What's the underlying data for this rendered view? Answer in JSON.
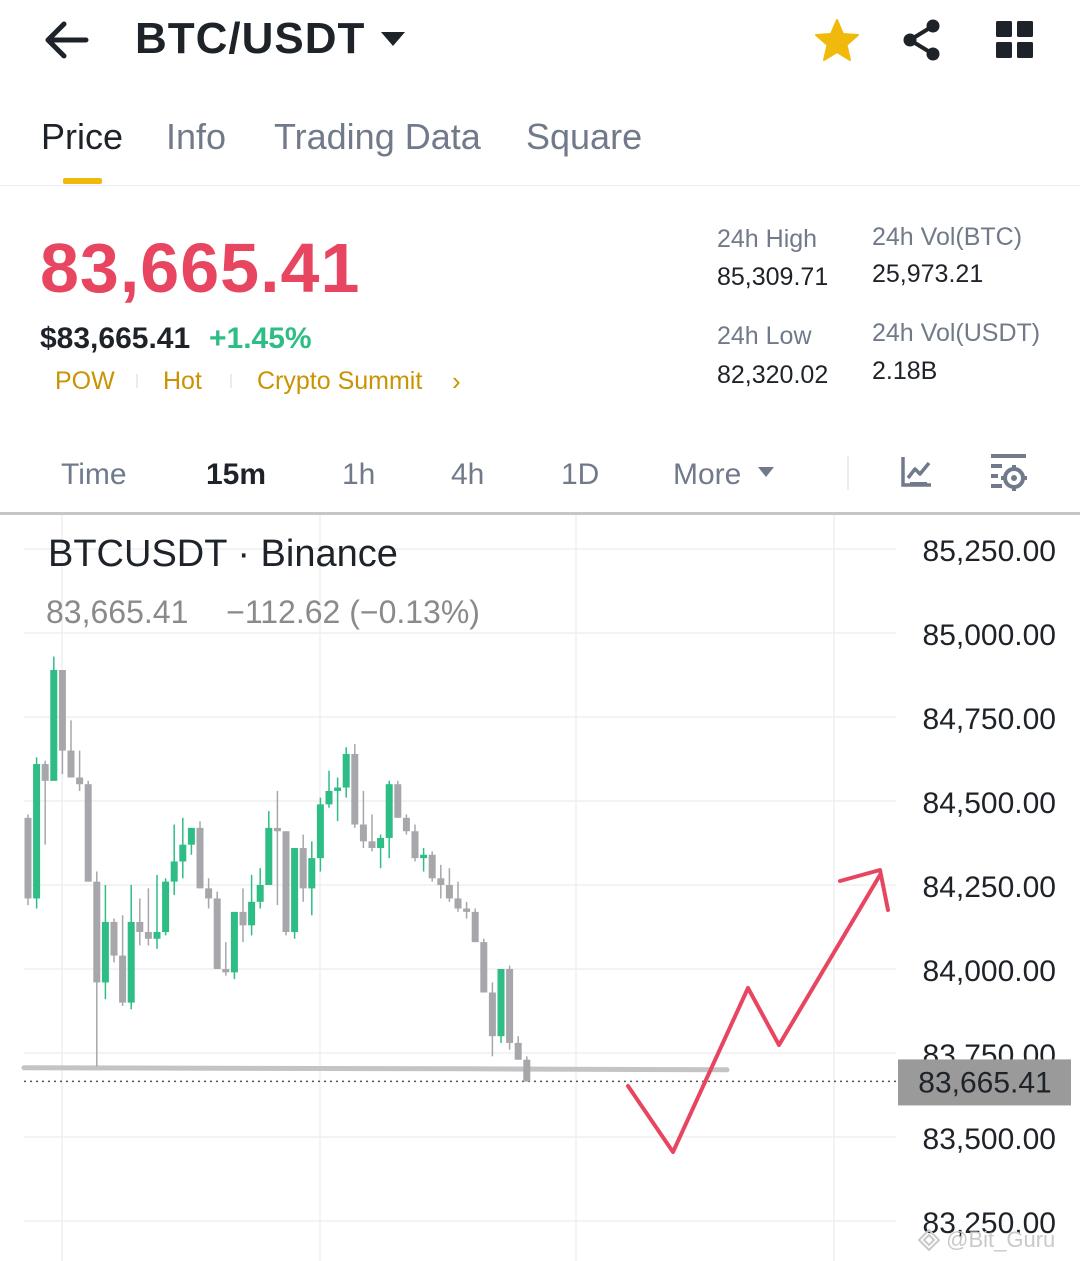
{
  "header": {
    "pair": "BTC/USDT",
    "back_icon": "arrow-left-icon",
    "favorite_icon": "star-icon",
    "share_icon": "share-icon",
    "menu_icon": "grid-icon"
  },
  "tabs": [
    {
      "label": "Price",
      "active": true
    },
    {
      "label": "Info"
    },
    {
      "label": "Trading Data"
    },
    {
      "label": "Square"
    }
  ],
  "ticker": {
    "last_price": "83,665.41",
    "usd_price": "$83,665.41",
    "change_pct": "+1.45%",
    "tags": [
      "POW",
      "Hot",
      "Crypto Summit"
    ],
    "stats": {
      "high_label": "24h High",
      "high_value": "85,309.71",
      "low_label": "24h Low",
      "low_value": "82,320.02",
      "vol_btc_label": "24h Vol(BTC)",
      "vol_btc_value": "25,973.21",
      "vol_usdt_label": "24h Vol(USDT)",
      "vol_usdt_value": "2.18B"
    }
  },
  "intervals": {
    "items": [
      "Time",
      "15m",
      "1h",
      "4h",
      "1D",
      "More"
    ],
    "active": "15m"
  },
  "colors": {
    "down": "#e84660",
    "up": "#2ebd85",
    "accent": "#f0b90b",
    "candle_up": "#2ebd85",
    "candle_down": "#a7a7ab",
    "annotation": "#e84660"
  },
  "chart_data": {
    "type": "candlestick",
    "title": "BTCUSDT · Binance",
    "header_price": "83,665.41",
    "header_change": "−112.62 (−0.13%)",
    "current_price_label": "83,665.41",
    "current_price": 83665.41,
    "y_ticks": [
      "85,250.00",
      "85,000.00",
      "84,750.00",
      "84,500.00",
      "84,250.00",
      "84,000.00",
      "83,750.00",
      "83,500.00",
      "83,250.00"
    ],
    "ylim": [
      83200,
      85300
    ],
    "support_level": 83700,
    "candles": [
      [
        84450,
        84460,
        84190,
        84210
      ],
      [
        84210,
        84630,
        84180,
        84610
      ],
      [
        84610,
        84620,
        84370,
        84560
      ],
      [
        84560,
        84930,
        84560,
        84890
      ],
      [
        84890,
        84890,
        84580,
        84650
      ],
      [
        84650,
        84740,
        84570,
        84570
      ],
      [
        84570,
        84650,
        84530,
        84550
      ],
      [
        84550,
        84560,
        84260,
        84260
      ],
      [
        84260,
        84290,
        83710,
        83960
      ],
      [
        83960,
        84250,
        83910,
        84140
      ],
      [
        84140,
        84150,
        84020,
        84040
      ],
      [
        84040,
        84160,
        83890,
        83900
      ],
      [
        83900,
        84250,
        83880,
        84140
      ],
      [
        84140,
        84210,
        84070,
        84110
      ],
      [
        84110,
        84240,
        84070,
        84090
      ],
      [
        84090,
        84280,
        84060,
        84110
      ],
      [
        84110,
        84270,
        84100,
        84260
      ],
      [
        84260,
        84430,
        84220,
        84320
      ],
      [
        84320,
        84450,
        84270,
        84370
      ],
      [
        84370,
        84420,
        84340,
        84420
      ],
      [
        84420,
        84440,
        84240,
        84240
      ],
      [
        84240,
        84270,
        84180,
        84210
      ],
      [
        84210,
        84230,
        84000,
        84000
      ],
      [
        84000,
        84080,
        83980,
        83990
      ],
      [
        83990,
        84170,
        83970,
        84170
      ],
      [
        84170,
        84240,
        84080,
        84130
      ],
      [
        84130,
        84280,
        84100,
        84200
      ],
      [
        84200,
        84300,
        84180,
        84250
      ],
      [
        84250,
        84470,
        84250,
        84420
      ],
      [
        84420,
        84530,
        84190,
        84410
      ],
      [
        84410,
        84410,
        84100,
        84110
      ],
      [
        84110,
        84360,
        84090,
        84360
      ],
      [
        84360,
        84400,
        84200,
        84240
      ],
      [
        84240,
        84380,
        84160,
        84330
      ],
      [
        84330,
        84510,
        84290,
        84490
      ],
      [
        84490,
        84590,
        84480,
        84530
      ],
      [
        84530,
        84570,
        84440,
        84540
      ],
      [
        84540,
        84660,
        84510,
        84640
      ],
      [
        84640,
        84670,
        84420,
        84430
      ],
      [
        84430,
        84530,
        84360,
        84380
      ],
      [
        84380,
        84460,
        84350,
        84360
      ],
      [
        84360,
        84400,
        84300,
        84390
      ],
      [
        84390,
        84560,
        84330,
        84550
      ],
      [
        84550,
        84560,
        84450,
        84450
      ],
      [
        84450,
        84460,
        84400,
        84410
      ],
      [
        84410,
        84430,
        84320,
        84330
      ],
      [
        84330,
        84360,
        84290,
        84340
      ],
      [
        84340,
        84350,
        84260,
        84270
      ],
      [
        84270,
        84310,
        84210,
        84250
      ],
      [
        84250,
        84300,
        84200,
        84210
      ],
      [
        84210,
        84260,
        84170,
        84180
      ],
      [
        84180,
        84200,
        84150,
        84170
      ],
      [
        84170,
        84180,
        84080,
        84080
      ],
      [
        84080,
        84090,
        83930,
        83930
      ],
      [
        83930,
        83960,
        83740,
        83800
      ],
      [
        83800,
        84000,
        83780,
        84000
      ],
      [
        84000,
        84010,
        83760,
        83780
      ],
      [
        83780,
        83800,
        83730,
        83730
      ],
      [
        83730,
        83740,
        83665,
        83665
      ]
    ]
  }
}
